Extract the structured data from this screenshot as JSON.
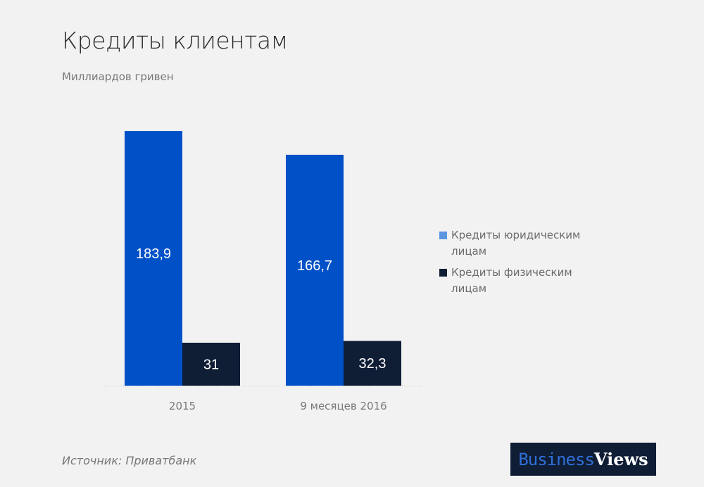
{
  "title": "Кредиты клиентам",
  "subtitle": "Миллиардов гривен",
  "source": "Источник: Приватбанк",
  "logo": {
    "part1": "Business",
    "part2": "Views"
  },
  "chart_data": {
    "type": "bar",
    "title": "Кредиты клиентам",
    "subtitle": "Миллиардов гривен",
    "categories": [
      "2015",
      "9 месяцев 2016"
    ],
    "series": [
      {
        "name": "Кредиты юридическим лицам",
        "values": [
          183.9,
          166.7
        ],
        "labels": [
          "183,9",
          "166,7"
        ],
        "color": "#0050c8",
        "legend_color": "#5b95e0"
      },
      {
        "name": "Кредиты физическим лицам",
        "values": [
          31,
          32.3
        ],
        "labels": [
          "31",
          "32,3"
        ],
        "color": "#0f1d35",
        "legend_color": "#0f1d35"
      }
    ],
    "ylim": [
      0,
      200
    ],
    "grid": false,
    "legend": "right"
  }
}
